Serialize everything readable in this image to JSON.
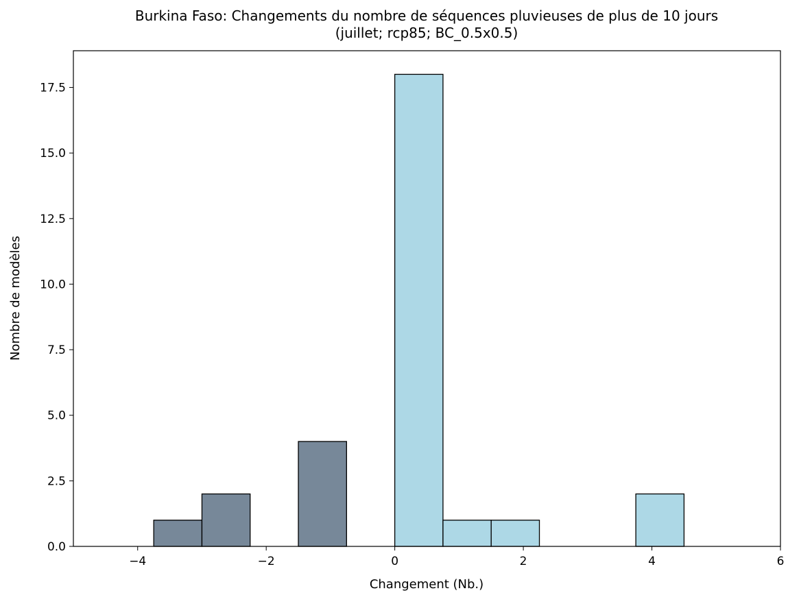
{
  "chart_data": {
    "type": "bar",
    "title": "Burkina Faso: Changements du nombre de séquences pluvieuses de plus de 10 jours",
    "subtitle": "(juillet; rcp85; BC_0.5x0.5)",
    "xlabel": "Changement (Nb.)",
    "ylabel": "Nombre de modèles",
    "xlim": [
      -5,
      6
    ],
    "ylim": [
      0,
      18.9
    ],
    "xticks": [
      -4,
      -2,
      0,
      2,
      4,
      6
    ],
    "xtick_labels": [
      "−4",
      "−2",
      "0",
      "2",
      "4",
      "6"
    ],
    "yticks": [
      0,
      2.5,
      5,
      7.5,
      10,
      12.5,
      15,
      17.5
    ],
    "ytick_labels": [
      "0.0",
      "2.5",
      "5.0",
      "7.5",
      "10.0",
      "12.5",
      "15.0",
      "17.5"
    ],
    "grid": false,
    "bins": [
      {
        "x0": -4.5,
        "x1": -3.75,
        "value": 0,
        "color": "#778899"
      },
      {
        "x0": -3.75,
        "x1": -3.0,
        "value": 1,
        "color": "#778899"
      },
      {
        "x0": -3.0,
        "x1": -2.25,
        "value": 2,
        "color": "#778899"
      },
      {
        "x0": -2.25,
        "x1": -1.5,
        "value": 0,
        "color": "#778899"
      },
      {
        "x0": -1.5,
        "x1": -0.75,
        "value": 4,
        "color": "#778899"
      },
      {
        "x0": -0.75,
        "x1": 0.0,
        "value": 0,
        "color": "#778899"
      },
      {
        "x0": 0.0,
        "x1": 0.75,
        "value": 18,
        "color": "#add8e6"
      },
      {
        "x0": 0.75,
        "x1": 1.5,
        "value": 1,
        "color": "#add8e6"
      },
      {
        "x0": 1.5,
        "x1": 2.25,
        "value": 1,
        "color": "#add8e6"
      },
      {
        "x0": 2.25,
        "x1": 3.0,
        "value": 0,
        "color": "#add8e6"
      },
      {
        "x0": 3.0,
        "x1": 3.75,
        "value": 0,
        "color": "#add8e6"
      },
      {
        "x0": 3.75,
        "x1": 4.5,
        "value": 2,
        "color": "#add8e6"
      }
    ]
  }
}
